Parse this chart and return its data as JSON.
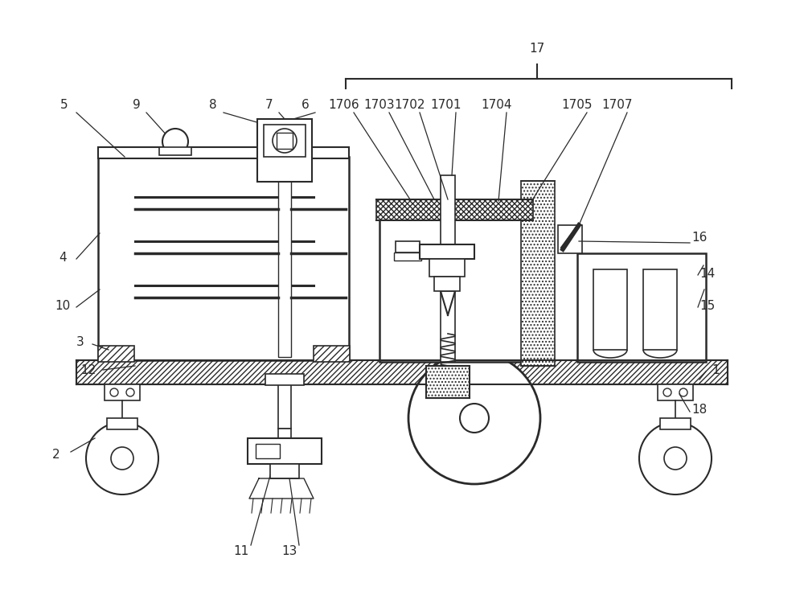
{
  "bg_color": "#ffffff",
  "line_color": "#2a2a2a",
  "figsize": [
    10.0,
    7.35
  ],
  "dpi": 100
}
